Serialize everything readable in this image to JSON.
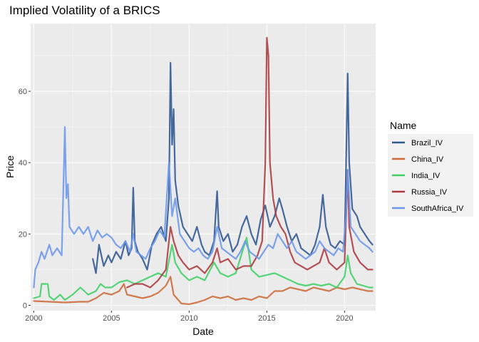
{
  "chart_data": {
    "type": "line",
    "title": "Implied Volatility of a BRICS",
    "xlabel": "Date",
    "ylabel": "Price",
    "xlim": [
      1999.8,
      2022.0
    ],
    "ylim": [
      -1.5,
      79
    ],
    "x_ticks": [
      2000,
      2005,
      2010,
      2015,
      2020
    ],
    "y_ticks": [
      0,
      20,
      40,
      60
    ],
    "grid": true,
    "legend": {
      "title": "Name",
      "position": "right"
    },
    "series": [
      {
        "name": "Brazil_IV",
        "color": "#2f578f",
        "points": [
          [
            2003.8,
            13
          ],
          [
            2004.0,
            9
          ],
          [
            2004.2,
            17
          ],
          [
            2004.5,
            11
          ],
          [
            2004.8,
            14
          ],
          [
            2005.0,
            12
          ],
          [
            2005.3,
            15
          ],
          [
            2005.6,
            13
          ],
          [
            2005.9,
            18
          ],
          [
            2006.1,
            14
          ],
          [
            2006.3,
            16
          ],
          [
            2006.4,
            33
          ],
          [
            2006.5,
            18
          ],
          [
            2006.7,
            15
          ],
          [
            2007.0,
            13
          ],
          [
            2007.3,
            10
          ],
          [
            2007.6,
            17
          ],
          [
            2007.9,
            20
          ],
          [
            2008.2,
            22
          ],
          [
            2008.5,
            18
          ],
          [
            2008.7,
            30
          ],
          [
            2008.8,
            68
          ],
          [
            2008.9,
            45
          ],
          [
            2009.0,
            55
          ],
          [
            2009.1,
            35
          ],
          [
            2009.3,
            28
          ],
          [
            2009.6,
            22
          ],
          [
            2009.9,
            20
          ],
          [
            2010.2,
            18
          ],
          [
            2010.5,
            22
          ],
          [
            2010.8,
            17
          ],
          [
            2011.0,
            15
          ],
          [
            2011.3,
            14
          ],
          [
            2011.6,
            18
          ],
          [
            2011.8,
            32
          ],
          [
            2011.9,
            22
          ],
          [
            2012.2,
            18
          ],
          [
            2012.5,
            20
          ],
          [
            2012.8,
            15
          ],
          [
            2013.1,
            17
          ],
          [
            2013.4,
            22
          ],
          [
            2013.7,
            25
          ],
          [
            2014.0,
            20
          ],
          [
            2014.3,
            17
          ],
          [
            2014.6,
            24
          ],
          [
            2014.9,
            28
          ],
          [
            2015.2,
            22
          ],
          [
            2015.5,
            25
          ],
          [
            2015.8,
            30
          ],
          [
            2016.0,
            27
          ],
          [
            2016.3,
            22
          ],
          [
            2016.6,
            18
          ],
          [
            2016.9,
            20
          ],
          [
            2017.2,
            16
          ],
          [
            2017.5,
            15
          ],
          [
            2017.8,
            14
          ],
          [
            2018.1,
            17
          ],
          [
            2018.4,
            22
          ],
          [
            2018.6,
            31
          ],
          [
            2018.8,
            22
          ],
          [
            2019.1,
            17
          ],
          [
            2019.4,
            16
          ],
          [
            2019.7,
            18
          ],
          [
            2020.0,
            17
          ],
          [
            2020.2,
            65
          ],
          [
            2020.3,
            40
          ],
          [
            2020.5,
            27
          ],
          [
            2020.8,
            25
          ],
          [
            2021.0,
            22
          ],
          [
            2021.3,
            20
          ],
          [
            2021.6,
            18
          ],
          [
            2021.8,
            17
          ]
        ]
      },
      {
        "name": "China_IV",
        "color": "#cc6a38",
        "points": [
          [
            2000.0,
            1.2
          ],
          [
            2001.0,
            1.0
          ],
          [
            2002.0,
            0.8
          ],
          [
            2003.0,
            1.0
          ],
          [
            2003.5,
            1.0
          ],
          [
            2004.0,
            2.0
          ],
          [
            2004.5,
            3.5
          ],
          [
            2005.0,
            3.0
          ],
          [
            2005.5,
            4.0
          ],
          [
            2005.8,
            6.0
          ],
          [
            2006.0,
            3.0
          ],
          [
            2006.5,
            2.5
          ],
          [
            2007.0,
            2.0
          ],
          [
            2007.5,
            2.5
          ],
          [
            2008.0,
            3.5
          ],
          [
            2008.5,
            5.5
          ],
          [
            2008.8,
            8.0
          ],
          [
            2009.0,
            3.0
          ],
          [
            2009.5,
            0.5
          ],
          [
            2010.0,
            0.3
          ],
          [
            2010.5,
            0.8
          ],
          [
            2011.0,
            1.5
          ],
          [
            2011.5,
            2.5
          ],
          [
            2012.0,
            2.0
          ],
          [
            2012.5,
            2.5
          ],
          [
            2013.0,
            1.5
          ],
          [
            2013.5,
            2.0
          ],
          [
            2014.0,
            1.5
          ],
          [
            2014.5,
            2.5
          ],
          [
            2015.0,
            2.0
          ],
          [
            2015.5,
            4.0
          ],
          [
            2016.0,
            4.0
          ],
          [
            2016.5,
            5.0
          ],
          [
            2017.0,
            4.5
          ],
          [
            2017.5,
            4.0
          ],
          [
            2018.0,
            5.0
          ],
          [
            2018.5,
            4.5
          ],
          [
            2019.0,
            4.0
          ],
          [
            2019.5,
            5.0
          ],
          [
            2020.0,
            4.5
          ],
          [
            2020.5,
            5.0
          ],
          [
            2021.0,
            4.5
          ],
          [
            2021.5,
            4.0
          ],
          [
            2021.8,
            4.0
          ]
        ]
      },
      {
        "name": "India_IV",
        "color": "#3fcf66",
        "points": [
          [
            2000.0,
            2.0
          ],
          [
            2000.4,
            2.5
          ],
          [
            2000.5,
            6.0
          ],
          [
            2000.9,
            6.0
          ],
          [
            2001.0,
            2.5
          ],
          [
            2001.3,
            1.5
          ],
          [
            2001.7,
            3.0
          ],
          [
            2002.0,
            1.5
          ],
          [
            2002.5,
            3.0
          ],
          [
            2003.0,
            5.0
          ],
          [
            2003.5,
            3.0
          ],
          [
            2004.0,
            4.0
          ],
          [
            2004.3,
            6.0
          ],
          [
            2004.6,
            5.0
          ],
          [
            2005.0,
            5.0
          ],
          [
            2005.5,
            6.5
          ],
          [
            2006.0,
            7.0
          ],
          [
            2006.5,
            6.0
          ],
          [
            2007.0,
            7.0
          ],
          [
            2007.5,
            8.0
          ],
          [
            2008.0,
            9.0
          ],
          [
            2008.5,
            8.0
          ],
          [
            2008.9,
            17.0
          ],
          [
            2009.1,
            12.0
          ],
          [
            2009.5,
            9.0
          ],
          [
            2010.0,
            7.0
          ],
          [
            2010.5,
            8.0
          ],
          [
            2011.0,
            7.0
          ],
          [
            2011.6,
            12.0
          ],
          [
            2012.0,
            9.0
          ],
          [
            2012.5,
            8.0
          ],
          [
            2013.0,
            9.0
          ],
          [
            2013.7,
            19.0
          ],
          [
            2014.0,
            10.0
          ],
          [
            2014.5,
            8.0
          ],
          [
            2015.0,
            8.5
          ],
          [
            2015.5,
            9.0
          ],
          [
            2016.0,
            8.0
          ],
          [
            2016.5,
            7.0
          ],
          [
            2017.0,
            6.0
          ],
          [
            2017.5,
            5.5
          ],
          [
            2018.0,
            6.0
          ],
          [
            2018.5,
            5.5
          ],
          [
            2019.0,
            6.0
          ],
          [
            2019.5,
            5.0
          ],
          [
            2020.0,
            8.0
          ],
          [
            2020.2,
            14.0
          ],
          [
            2020.4,
            9.0
          ],
          [
            2020.8,
            6.0
          ],
          [
            2021.2,
            5.5
          ],
          [
            2021.6,
            5.0
          ],
          [
            2021.8,
            5.0
          ]
        ]
      },
      {
        "name": "Russia_IV",
        "color": "#ab3a3f",
        "points": [
          [
            2006.0,
            5.0
          ],
          [
            2006.5,
            6.0
          ],
          [
            2007.0,
            6.0
          ],
          [
            2007.5,
            5.0
          ],
          [
            2008.0,
            7.0
          ],
          [
            2008.5,
            10.0
          ],
          [
            2008.8,
            22.0
          ],
          [
            2009.0,
            18.0
          ],
          [
            2009.3,
            14.0
          ],
          [
            2009.6,
            12.0
          ],
          [
            2010.0,
            10.0
          ],
          [
            2010.5,
            11.0
          ],
          [
            2011.0,
            9.0
          ],
          [
            2011.5,
            12.0
          ],
          [
            2011.8,
            16.0
          ],
          [
            2012.0,
            12.0
          ],
          [
            2012.5,
            13.0
          ],
          [
            2013.0,
            10.0
          ],
          [
            2013.5,
            11.0
          ],
          [
            2014.0,
            11.0
          ],
          [
            2014.4,
            14.0
          ],
          [
            2014.7,
            18.0
          ],
          [
            2014.9,
            40.0
          ],
          [
            2015.0,
            75.0
          ],
          [
            2015.1,
            70.0
          ],
          [
            2015.2,
            40.0
          ],
          [
            2015.4,
            30.0
          ],
          [
            2015.6,
            25.0
          ],
          [
            2015.9,
            22.0
          ],
          [
            2016.2,
            20.0
          ],
          [
            2016.5,
            15.0
          ],
          [
            2016.8,
            12.0
          ],
          [
            2017.2,
            11.0
          ],
          [
            2017.6,
            10.0
          ],
          [
            2018.0,
            11.0
          ],
          [
            2018.4,
            12.0
          ],
          [
            2018.7,
            16.0
          ],
          [
            2019.0,
            12.0
          ],
          [
            2019.5,
            10.0
          ],
          [
            2020.0,
            12.0
          ],
          [
            2020.2,
            38.0
          ],
          [
            2020.3,
            22.0
          ],
          [
            2020.6,
            15.0
          ],
          [
            2021.0,
            12.0
          ],
          [
            2021.5,
            10.0
          ],
          [
            2021.8,
            10.0
          ]
        ]
      },
      {
        "name": "SouthAfrica_IV",
        "color": "#6b96ea",
        "points": [
          [
            2000.0,
            5.0
          ],
          [
            2000.1,
            10.0
          ],
          [
            2000.3,
            12.0
          ],
          [
            2000.5,
            15.0
          ],
          [
            2000.7,
            13.0
          ],
          [
            2001.0,
            17.0
          ],
          [
            2001.2,
            14.0
          ],
          [
            2001.5,
            16.0
          ],
          [
            2001.8,
            14.0
          ],
          [
            2002.0,
            50.0
          ],
          [
            2002.1,
            30.0
          ],
          [
            2002.2,
            34.0
          ],
          [
            2002.3,
            22.0
          ],
          [
            2002.6,
            20.0
          ],
          [
            2002.9,
            22.0
          ],
          [
            2003.2,
            20.0
          ],
          [
            2003.5,
            22.0
          ],
          [
            2003.8,
            18.0
          ],
          [
            2004.1,
            21.0
          ],
          [
            2004.4,
            19.0
          ],
          [
            2004.7,
            20.0
          ],
          [
            2005.0,
            19.0
          ],
          [
            2005.3,
            17.0
          ],
          [
            2005.6,
            16.0
          ],
          [
            2005.9,
            18.0
          ],
          [
            2006.2,
            15.0
          ],
          [
            2006.4,
            20.0
          ],
          [
            2006.6,
            15.0
          ],
          [
            2006.9,
            14.0
          ],
          [
            2007.2,
            13.0
          ],
          [
            2007.5,
            16.0
          ],
          [
            2007.8,
            18.0
          ],
          [
            2008.1,
            21.0
          ],
          [
            2008.4,
            19.0
          ],
          [
            2008.7,
            40.0
          ],
          [
            2008.9,
            25.0
          ],
          [
            2009.1,
            30.0
          ],
          [
            2009.4,
            20.0
          ],
          [
            2009.7,
            18.0
          ],
          [
            2010.0,
            16.0
          ],
          [
            2010.3,
            15.0
          ],
          [
            2010.6,
            16.0
          ],
          [
            2010.9,
            14.0
          ],
          [
            2011.2,
            13.0
          ],
          [
            2011.5,
            15.0
          ],
          [
            2011.8,
            22.0
          ],
          [
            2012.1,
            16.0
          ],
          [
            2012.4,
            15.0
          ],
          [
            2012.7,
            14.0
          ],
          [
            2013.0,
            13.0
          ],
          [
            2013.3,
            15.0
          ],
          [
            2013.6,
            18.0
          ],
          [
            2013.9,
            15.0
          ],
          [
            2014.2,
            14.0
          ],
          [
            2014.5,
            13.0
          ],
          [
            2014.8,
            15.0
          ],
          [
            2015.1,
            17.0
          ],
          [
            2015.4,
            16.0
          ],
          [
            2015.7,
            20.0
          ],
          [
            2016.0,
            18.0
          ],
          [
            2016.3,
            16.0
          ],
          [
            2016.6,
            18.0
          ],
          [
            2016.9,
            15.0
          ],
          [
            2017.2,
            14.0
          ],
          [
            2017.5,
            13.0
          ],
          [
            2017.8,
            14.0
          ],
          [
            2018.1,
            15.0
          ],
          [
            2018.4,
            18.0
          ],
          [
            2018.7,
            16.0
          ],
          [
            2019.0,
            15.0
          ],
          [
            2019.3,
            14.0
          ],
          [
            2019.6,
            16.0
          ],
          [
            2019.9,
            15.0
          ],
          [
            2020.1,
            25.0
          ],
          [
            2020.2,
            38.0
          ],
          [
            2020.4,
            22.0
          ],
          [
            2020.7,
            20.0
          ],
          [
            2021.0,
            18.0
          ],
          [
            2021.3,
            17.0
          ],
          [
            2021.6,
            16.0
          ],
          [
            2021.8,
            15.0
          ]
        ]
      }
    ]
  }
}
